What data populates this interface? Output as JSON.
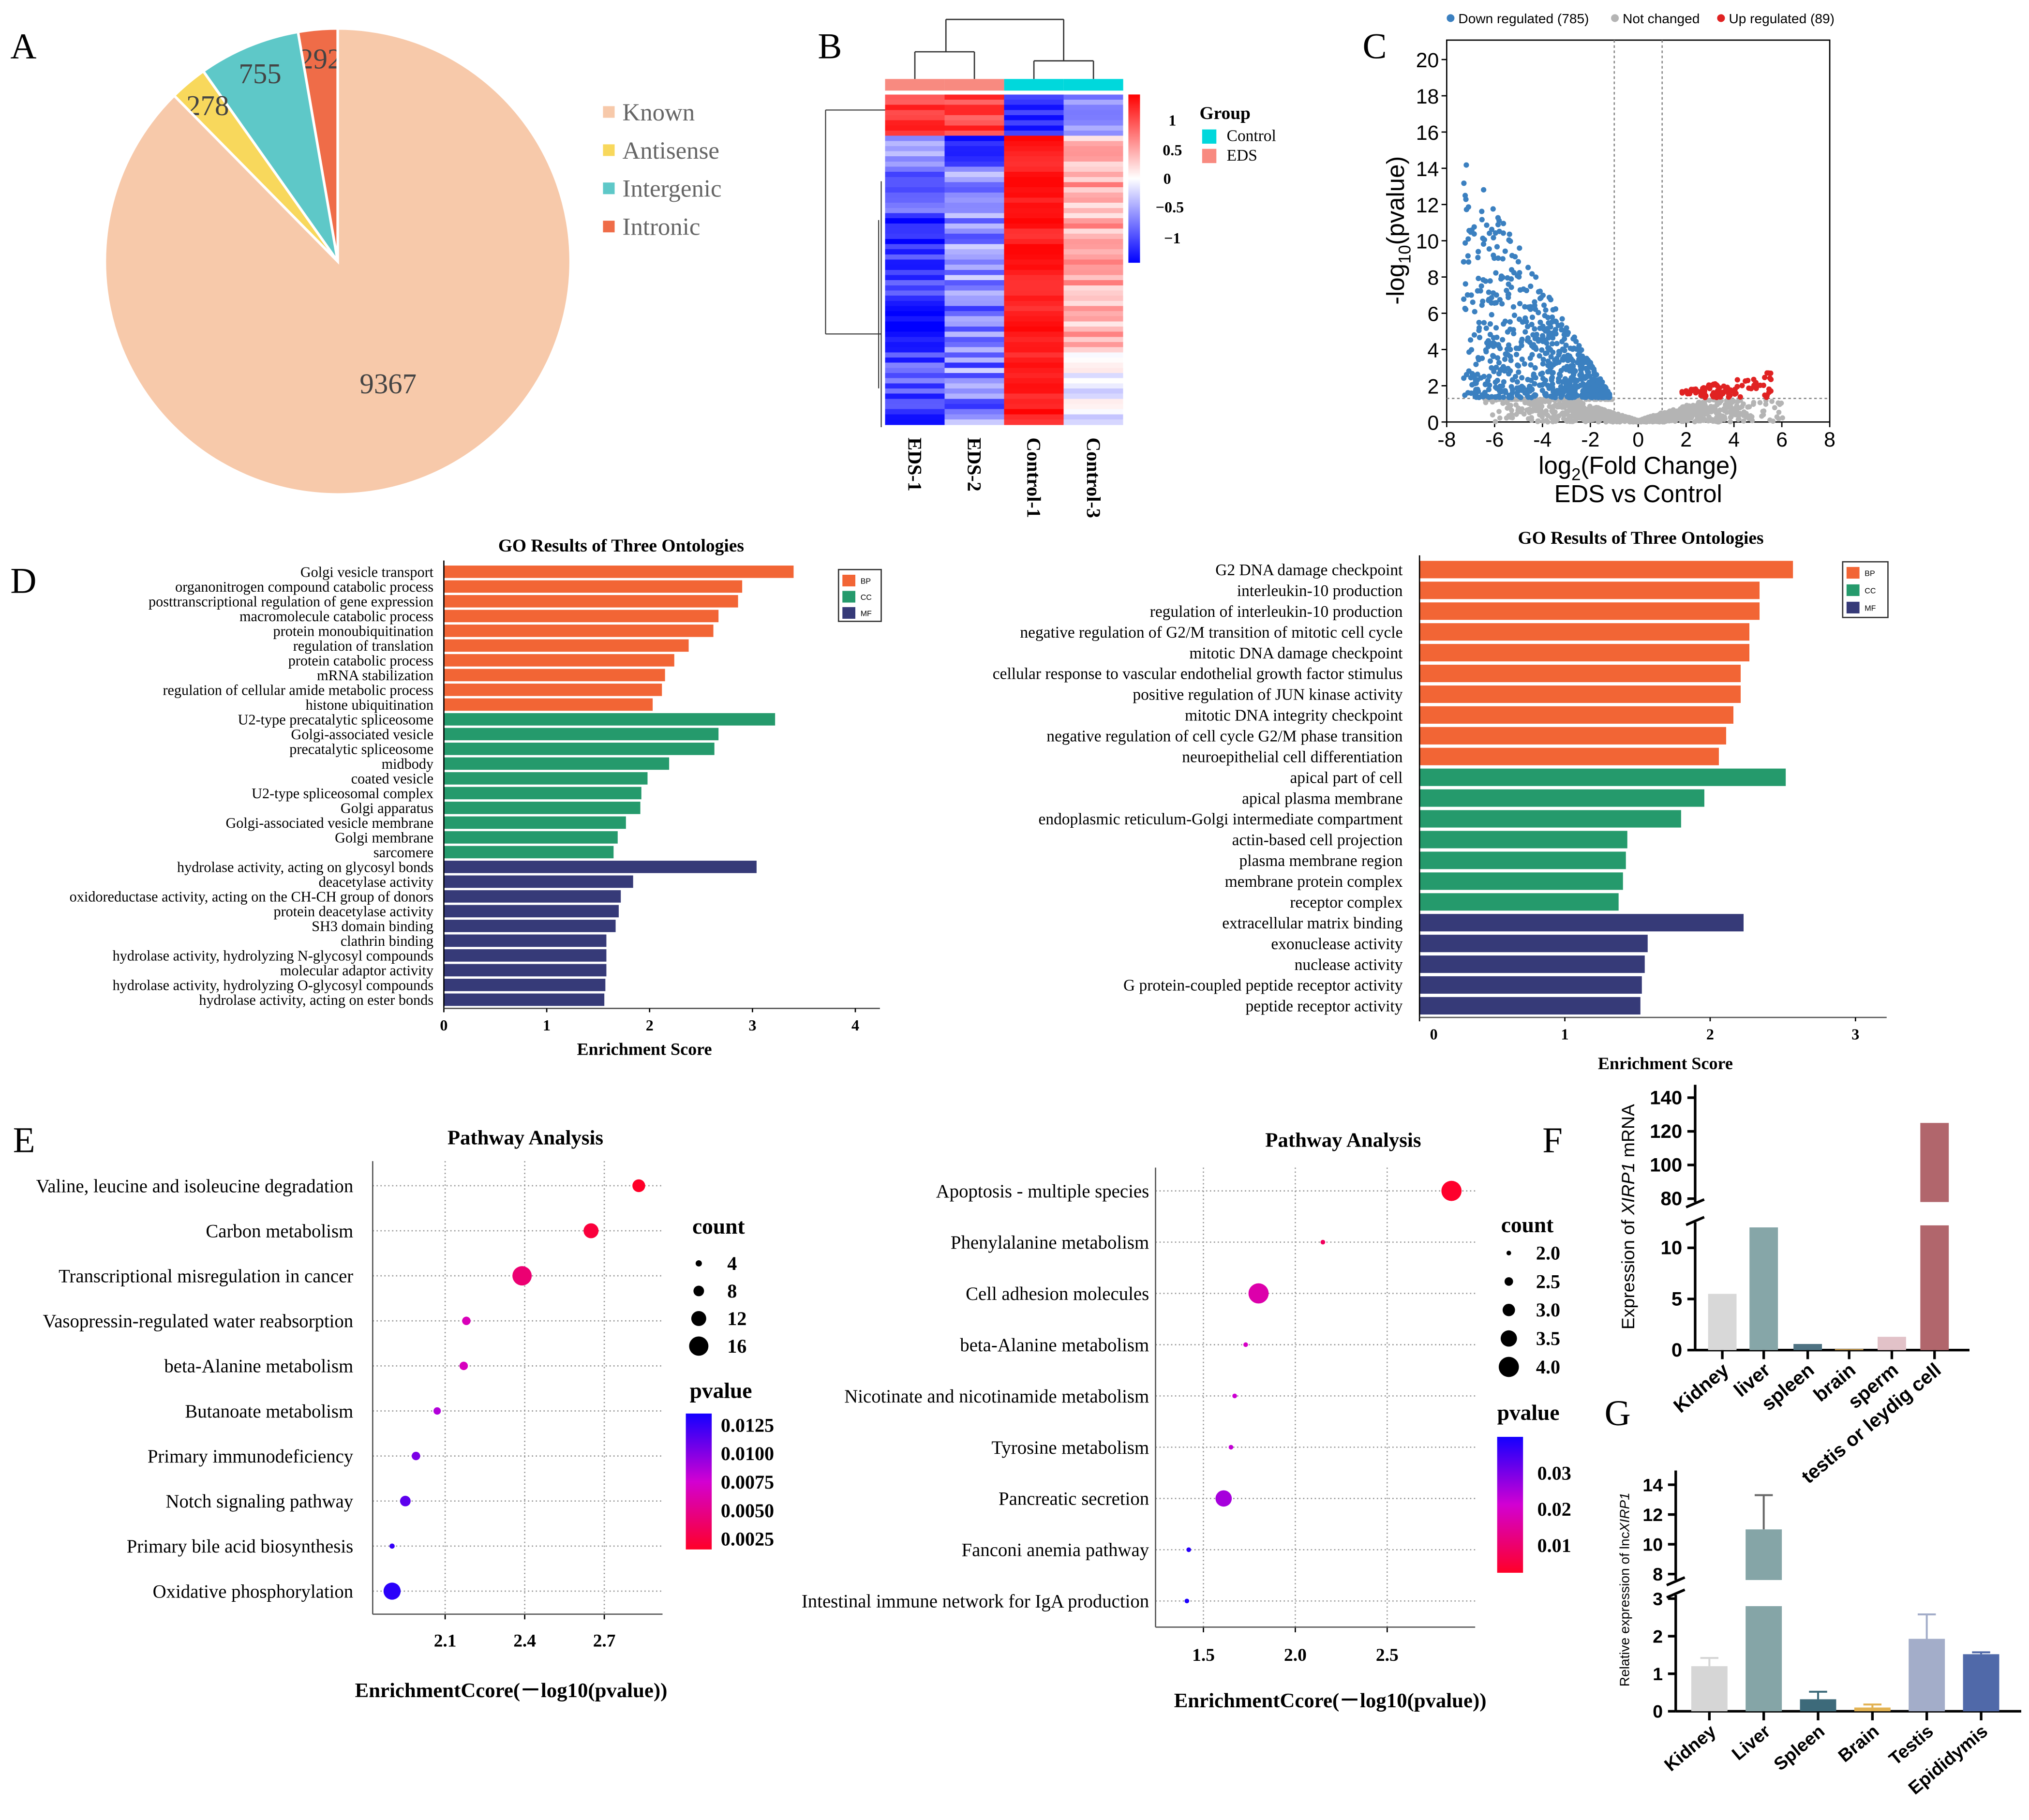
{
  "panel_labels": [
    "A",
    "B",
    "C",
    "D",
    "E",
    "F",
    "G"
  ],
  "chart_data": [
    {
      "type": "pie",
      "panel": "A",
      "labels": [
        "Known",
        "Antisense",
        "Intergenic",
        "Intronic"
      ],
      "values": [
        9367,
        278,
        755,
        292
      ],
      "colors": [
        "#f7c9aa",
        "#f8d85c",
        "#5ec8c8",
        "#ef6c48"
      ],
      "legend_position": "right"
    },
    {
      "type": "heatmap",
      "panel": "B",
      "columns": [
        "EDS-1",
        "EDS-2",
        "Control-1",
        "Control-3"
      ],
      "column_group_index": [
        1,
        1,
        0,
        0
      ],
      "legend_title": "Group",
      "groups": [
        {
          "name": "Control",
          "color": "#00d8dc"
        },
        {
          "name": "EDS",
          "color": "#f88a80"
        }
      ],
      "scale_ticks": [
        "1",
        "0.5",
        "0",
        "−0.5",
        "−1"
      ],
      "scale_range": [
        -1.2,
        1.2
      ],
      "scale_colors": {
        "low": "#0000ff",
        "mid": "#ffffff",
        "high": "#ff0000"
      }
    },
    {
      "type": "scatter",
      "panel": "C",
      "legend": [
        {
          "label": "Down regulated (785)",
          "color": "#3b80c0",
          "count": 785
        },
        {
          "label": "Not changed",
          "color": "#b4b4b4"
        },
        {
          "label": "Up regulated (89)",
          "color": "#e02222",
          "count": 89
        }
      ],
      "xlabel_prefix": "log",
      "xlabel_sub": "2",
      "xlabel_suffix": "(Fold Change)",
      "xlabel2": "EDS vs Control",
      "ylabel_prefix": "-log",
      "ylabel_sub": "10",
      "ylabel_suffix": "(pvalue)",
      "xlim": [
        -8,
        8
      ],
      "ylim": [
        0,
        20
      ],
      "xticks": [
        -8,
        -6,
        -4,
        -2,
        0,
        2,
        4,
        6,
        8
      ],
      "yticks": [
        0,
        2,
        4,
        6,
        8,
        10,
        12,
        14,
        16,
        18,
        20
      ],
      "fc_threshold": 1,
      "neglog_p_threshold": 1.3
    },
    {
      "type": "bar",
      "orientation": "horizontal",
      "panel": "D-left",
      "title": "GO Results of Three Ontologies",
      "xlabel": "Enrichment Score",
      "xticks": [
        0,
        1,
        2,
        3,
        4
      ],
      "legend": [
        {
          "label": "BP",
          "color": "#f26535"
        },
        {
          "label": "CC",
          "color": "#259a6c"
        },
        {
          "label": "MF",
          "color": "#363a78"
        }
      ],
      "ontology_counts": [
        10,
        10,
        10
      ],
      "categories": [
        "Golgi vesicle transport",
        "organonitrogen compound catabolic process",
        "posttranscriptional regulation of gene expression",
        "macromolecule catabolic process",
        "protein monoubiquitination",
        "regulation of translation",
        "protein catabolic process",
        "mRNA stabilization",
        "regulation of cellular amide metabolic process",
        "histone ubiquitination",
        "U2-type precatalytic spliceosome",
        "Golgi-associated vesicle",
        "precatalytic spliceosome",
        "midbody",
        "coated vesicle",
        "U2-type spliceosomal complex",
        "Golgi apparatus",
        "Golgi-associated vesicle membrane",
        "Golgi membrane",
        "sarcomere",
        "hydrolase activity, acting on glycosyl bonds",
        "deacetylase activity",
        "oxidoreductase activity, acting on the CH-CH group of donors",
        "protein deacetylase activity",
        "SH3 domain binding",
        "clathrin binding",
        "hydrolase activity, hydrolyzing N-glycosyl compounds",
        "molecular adaptor activity",
        "hydrolase activity, hydrolyzing O-glycosyl compounds",
        "hydrolase activity, acting on ester bonds"
      ],
      "values": [
        3.4,
        2.9,
        2.86,
        2.67,
        2.62,
        2.38,
        2.24,
        2.15,
        2.12,
        2.03,
        3.22,
        2.67,
        2.63,
        2.19,
        1.98,
        1.92,
        1.91,
        1.77,
        1.69,
        1.65,
        3.04,
        1.84,
        1.72,
        1.7,
        1.67,
        1.58,
        1.58,
        1.58,
        1.57,
        1.56
      ]
    },
    {
      "type": "bar",
      "orientation": "horizontal",
      "panel": "D-right",
      "title": "GO Results of Three Ontologies",
      "xlabel": "Enrichment Score",
      "xticks": [
        0,
        1,
        2,
        3
      ],
      "legend": [
        {
          "label": "BP",
          "color": "#f26535"
        },
        {
          "label": "CC",
          "color": "#259a6c"
        },
        {
          "label": "MF",
          "color": "#363a78"
        }
      ],
      "ontology_counts": [
        10,
        7,
        5
      ],
      "categories": [
        "G2 DNA damage checkpoint",
        "interleukin-10 production",
        "regulation of interleukin-10 production",
        "negative regulation of G2/M transition of mitotic cell cycle",
        "mitotic DNA damage checkpoint",
        "cellular response to vascular endothelial growth factor stimulus",
        "positive regulation of JUN kinase activity",
        "mitotic DNA integrity checkpoint",
        "negative regulation of cell cycle G2/M phase transition",
        "neuroepithelial cell differentiation",
        "apical part of cell",
        "apical plasma membrane",
        "endoplasmic reticulum-Golgi intermediate compartment",
        "actin-based cell projection",
        "plasma membrane region",
        "membrane protein complex",
        "receptor complex",
        "extracellular matrix binding",
        "exonuclease activity",
        "nuclease activity",
        "G protein-coupled peptide receptor activity",
        "peptide receptor activity"
      ],
      "values": [
        2.57,
        2.34,
        2.34,
        2.27,
        2.27,
        2.21,
        2.21,
        2.16,
        2.11,
        2.06,
        2.52,
        1.96,
        1.8,
        1.43,
        1.42,
        1.4,
        1.37,
        2.23,
        1.57,
        1.55,
        1.53,
        1.52
      ]
    },
    {
      "type": "scatter",
      "panel": "E-left",
      "title": "Pathway Analysis",
      "xlabel": "EnrichmentCcore(－log10(pvalue))",
      "xticks": [
        "2.1",
        "2.4",
        "2.7"
      ],
      "categories": [
        "Valine, leucine and isoleucine degradation",
        "Carbon metabolism",
        "Transcriptional misregulation in cancer",
        "Vasopressin-regulated water reabsorption",
        "beta-Alanine metabolism",
        "Butanoate metabolism",
        "Primary immunodeficiency",
        "Notch signaling pathway",
        "Primary bile acid biosynthesis",
        "Oxidative phosphorylation"
      ],
      "x": [
        2.83,
        2.65,
        2.39,
        2.18,
        2.17,
        2.07,
        1.99,
        1.95,
        1.9,
        1.9
      ],
      "count": [
        10,
        12,
        16,
        6,
        6,
        5,
        6,
        8,
        3,
        14
      ],
      "pvalue": [
        0.0015,
        0.0022,
        0.0041,
        0.0066,
        0.0068,
        0.0085,
        0.0102,
        0.0112,
        0.0125,
        0.0128
      ],
      "count_legend": {
        "title": "count",
        "values": [
          "4",
          "8",
          "12",
          "16"
        ]
      },
      "pvalue_legend": {
        "title": "pvalue",
        "ticks": [
          "0.0125",
          "0.0100",
          "0.0075",
          "0.0050",
          "0.0025"
        ],
        "range": [
          0.0015,
          0.0135
        ]
      }
    },
    {
      "type": "scatter",
      "panel": "E-right",
      "title": "Pathway Analysis",
      "xlabel": "EnrichmentCcore(－log10(pvalue))",
      "xticks": [
        "1.5",
        "2.0",
        "2.5"
      ],
      "categories": [
        "Apoptosis - multiple species",
        "Phenylalanine metabolism",
        "Cell adhesion molecules",
        "beta-Alanine metabolism",
        "Nicotinate and nicotinamide metabolism",
        "Tyrosine metabolism",
        "Pancreatic secretion",
        "Fanconi anemia pathway",
        "Intestinal immune network for IgA production"
      ],
      "x": [
        2.85,
        2.15,
        1.8,
        1.73,
        1.67,
        1.65,
        1.61,
        1.42,
        1.41
      ],
      "count": [
        4,
        2,
        4,
        2,
        2,
        2,
        3.5,
        2,
        2
      ],
      "pvalue": [
        0.0015,
        0.0071,
        0.016,
        0.019,
        0.021,
        0.022,
        0.025,
        0.038,
        0.039
      ],
      "count_legend": {
        "title": "count",
        "values": [
          "2.0",
          "2.5",
          "3.0",
          "3.5",
          "4.0"
        ]
      },
      "pvalue_legend": {
        "title": "pvalue",
        "ticks": [
          "0.03",
          "0.02",
          "0.01"
        ],
        "range": [
          0.001,
          0.04
        ]
      }
    },
    {
      "type": "bar",
      "panel": "F",
      "ylabel_prefix": "Expression of ",
      "ylabel_italic": "XIRP1",
      "ylabel_suffix": " mRNA",
      "categories": [
        "Kidney",
        "liver",
        "spleen",
        "brain",
        "sperm",
        "testis or leydig cell"
      ],
      "values": [
        5.5,
        12,
        0.6,
        0.1,
        1.3,
        125
      ],
      "colors": [
        "#d8d8d8",
        "#86a6a8",
        "#4e7282",
        "#e2b25e",
        "#e2c2c8",
        "#b1666c"
      ],
      "yticks_lower": [
        0,
        5,
        10
      ],
      "yticks_upper": [
        80,
        100,
        120,
        140
      ],
      "axis_break": [
        12.5,
        78
      ]
    },
    {
      "type": "bar",
      "panel": "G",
      "ylabel_prefix": "Relative expression of lnc",
      "ylabel_italic": "XIRP1",
      "categories": [
        "Kidney",
        "Liver",
        "Spleen",
        "Brain",
        "Testis",
        "Epididymis"
      ],
      "values": [
        1.2,
        11.0,
        0.32,
        0.1,
        1.93,
        1.52
      ],
      "error_upper": [
        1.42,
        13.3,
        0.52,
        0.18,
        2.58,
        1.57
      ],
      "colors": [
        "#d6d6d6",
        "#85a5a7",
        "#3d6a7a",
        "#e2b252",
        "#a3adc9",
        "#5069a9"
      ],
      "yticks_lower": [
        0,
        1,
        2,
        3
      ],
      "yticks_upper": [
        8,
        10,
        12,
        14
      ],
      "axis_break": [
        3.1,
        7.6
      ]
    }
  ]
}
